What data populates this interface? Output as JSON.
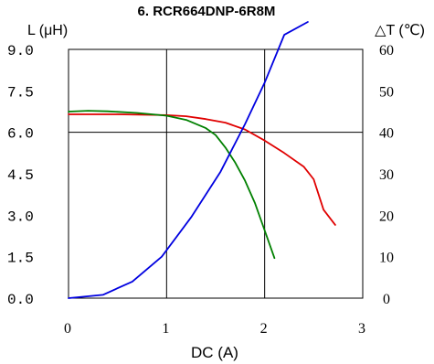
{
  "chart_data": {
    "type": "line",
    "title": "6. RCR664DNP-6R8M",
    "xlabel": "DC (A)",
    "ylabel_left": "L (μH)",
    "ylabel_right": "△T (℃)",
    "xlim": [
      0,
      3
    ],
    "ylim_left": [
      0,
      9
    ],
    "ylim_right": [
      0,
      60
    ],
    "x_ticks": [
      "0",
      "1",
      "2",
      "3"
    ],
    "y_ticks_left": [
      "0.0",
      "1.5",
      "3.0",
      "4.5",
      "6.0",
      "7.5",
      "9.0"
    ],
    "y_ticks_right": [
      "0",
      "10",
      "20",
      "30",
      "40",
      "50",
      "60"
    ],
    "grid": {
      "vertical_at": [
        1,
        2
      ],
      "horizontal_at": [
        6
      ]
    },
    "series": [
      {
        "color": "#e00000",
        "axis": "left",
        "x": [
          0,
          0.5,
          1.0,
          1.2,
          1.4,
          1.6,
          1.8,
          2.0,
          2.2,
          2.4,
          2.5,
          2.6,
          2.72
        ],
        "values": [
          6.65,
          6.65,
          6.62,
          6.58,
          6.48,
          6.35,
          6.1,
          5.7,
          5.25,
          4.75,
          4.3,
          3.2,
          2.65
        ]
      },
      {
        "color": "#008000",
        "axis": "left",
        "x": [
          0,
          0.2,
          0.4,
          0.7,
          1.0,
          1.2,
          1.4,
          1.5,
          1.6,
          1.7,
          1.8,
          1.9,
          2.0,
          2.1
        ],
        "values": [
          6.75,
          6.78,
          6.76,
          6.7,
          6.6,
          6.45,
          6.15,
          5.9,
          5.45,
          4.9,
          4.25,
          3.45,
          2.45,
          1.45
        ]
      },
      {
        "color": "#0000e0",
        "axis": "right",
        "x": [
          0,
          0.35,
          0.65,
          0.95,
          1.25,
          1.55,
          1.8,
          2.0,
          2.2,
          2.44
        ],
        "values": [
          0,
          0.8,
          4,
          10,
          19.5,
          30.5,
          42,
          52,
          63.5,
          84
        ]
      }
    ]
  }
}
